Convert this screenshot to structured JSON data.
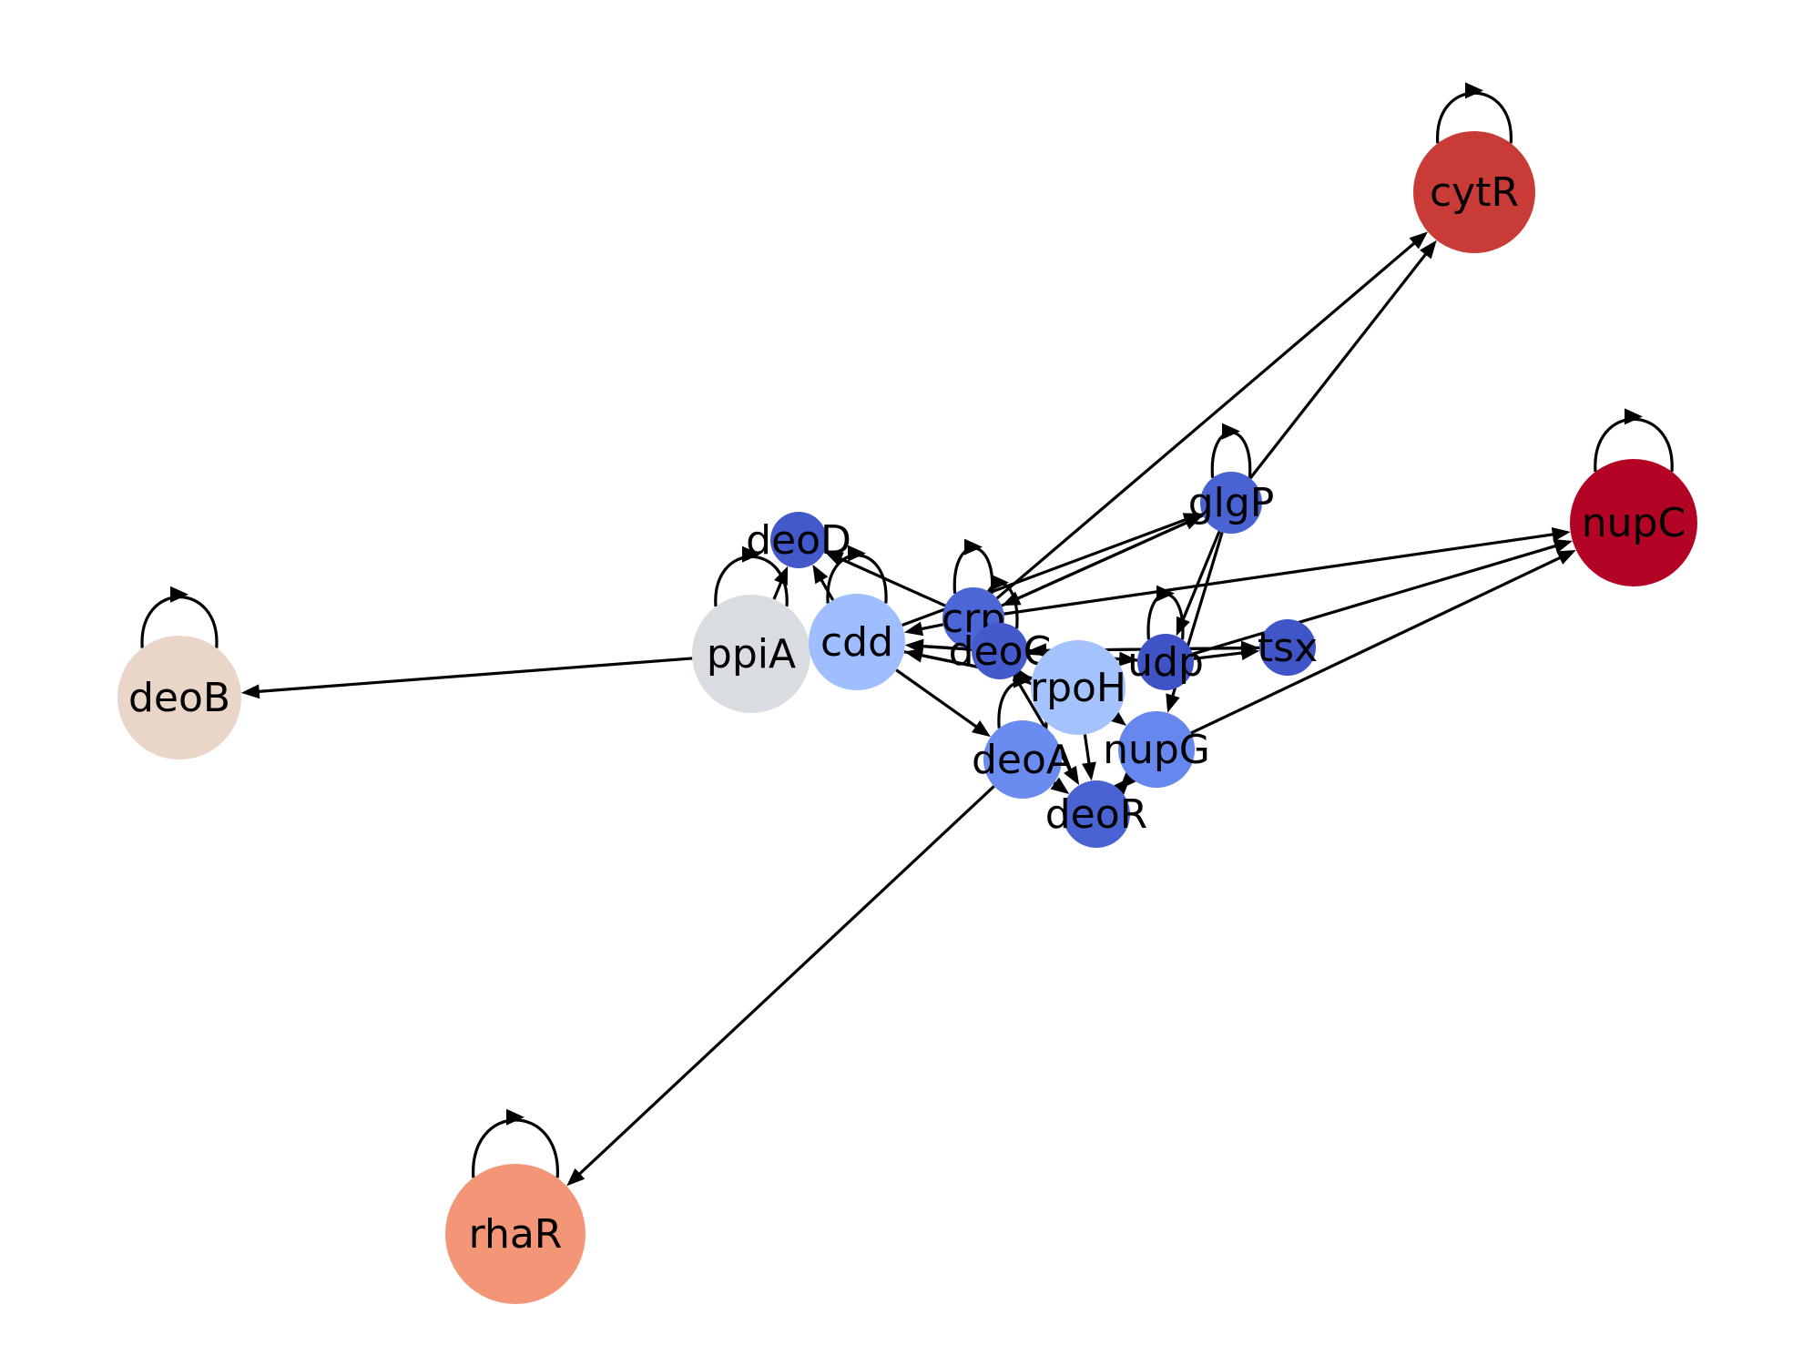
{
  "graph": {
    "directed": true,
    "nodes": [
      {
        "id": "cytR",
        "color": "#c93b37"
      },
      {
        "id": "nupC",
        "color": "#b40426"
      },
      {
        "id": "glgP",
        "color": "#4a63d3"
      },
      {
        "id": "deoD",
        "color": "#4358cb"
      },
      {
        "id": "ppiA",
        "color": "#d9dce1"
      },
      {
        "id": "cdd",
        "color": "#9ebeff"
      },
      {
        "id": "crp",
        "color": "#4c66d6"
      },
      {
        "id": "deoC",
        "color": "#445acc"
      },
      {
        "id": "rpoH",
        "color": "#a3c2fe"
      },
      {
        "id": "udp",
        "color": "#3f53c6"
      },
      {
        "id": "tsx",
        "color": "#4055c8"
      },
      {
        "id": "nupG",
        "color": "#6687ed"
      },
      {
        "id": "deoA",
        "color": "#6a8bef"
      },
      {
        "id": "deoR",
        "color": "#4a63d3"
      },
      {
        "id": "deoB",
        "color": "#ead5c9"
      },
      {
        "id": "rhaR",
        "color": "#f39577"
      }
    ],
    "edges": [
      {
        "source": "cytR",
        "target": "cytR"
      },
      {
        "source": "nupC",
        "target": "nupC"
      },
      {
        "source": "deoB",
        "target": "deoB"
      },
      {
        "source": "rhaR",
        "target": "rhaR"
      },
      {
        "source": "glgP",
        "target": "glgP"
      },
      {
        "source": "ppiA",
        "target": "ppiA"
      },
      {
        "source": "cdd",
        "target": "cdd"
      },
      {
        "source": "crp",
        "target": "crp"
      },
      {
        "source": "deoC",
        "target": "deoC"
      },
      {
        "source": "udp",
        "target": "udp"
      },
      {
        "source": "deoA",
        "target": "deoA"
      },
      {
        "source": "crp",
        "target": "cytR"
      },
      {
        "source": "glgP",
        "target": "cytR"
      },
      {
        "source": "crp",
        "target": "nupC"
      },
      {
        "source": "udp",
        "target": "nupC"
      },
      {
        "source": "nupG",
        "target": "nupC"
      },
      {
        "source": "ppiA",
        "target": "deoB"
      },
      {
        "source": "deoA",
        "target": "rhaR"
      },
      {
        "source": "cdd",
        "target": "glgP"
      },
      {
        "source": "crp",
        "target": "glgP"
      },
      {
        "source": "glgP",
        "target": "crp"
      },
      {
        "source": "glgP",
        "target": "udp"
      },
      {
        "source": "glgP",
        "target": "nupG"
      },
      {
        "source": "ppiA",
        "target": "deoD"
      },
      {
        "source": "cdd",
        "target": "deoD"
      },
      {
        "source": "crp",
        "target": "deoD"
      },
      {
        "source": "crp",
        "target": "cdd"
      },
      {
        "source": "deoC",
        "target": "cdd"
      },
      {
        "source": "udp",
        "target": "cdd"
      },
      {
        "source": "rpoH",
        "target": "cdd"
      },
      {
        "source": "cdd",
        "target": "deoA"
      },
      {
        "source": "deoC",
        "target": "udp"
      },
      {
        "source": "deoC",
        "target": "tsx"
      },
      {
        "source": "udp",
        "target": "tsx"
      },
      {
        "source": "tsx",
        "target": "deoC"
      },
      {
        "source": "deoC",
        "target": "deoR"
      },
      {
        "source": "deoA",
        "target": "deoR"
      },
      {
        "source": "nupG",
        "target": "deoR"
      },
      {
        "source": "deoR",
        "target": "nupG"
      },
      {
        "source": "rpoH",
        "target": "nupG"
      },
      {
        "source": "cdd",
        "target": "rpoH"
      },
      {
        "source": "rpoH",
        "target": "deoR"
      }
    ]
  }
}
